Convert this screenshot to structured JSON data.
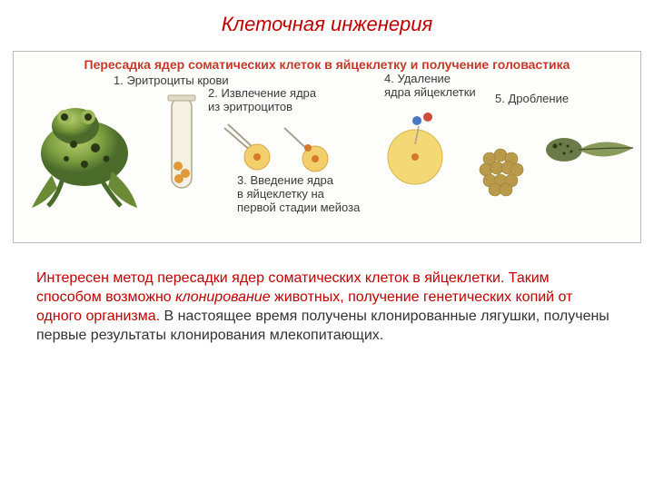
{
  "title": {
    "text": "Клеточная инженерия",
    "color": "#c00000"
  },
  "figure": {
    "title": "Пересадка ядер соматических клеток в яйцеклетку и получение головастика",
    "title_color": "#c33a2c",
    "steps": {
      "s1": "1. Эритроциты крови",
      "s2a": "2. Извлечение ядра",
      "s2b": "из эритроцитов",
      "s3a": "3. Введение ядра",
      "s3b": "в яйцеклетку на",
      "s3c": "первой стадии мейоза",
      "s4a": "4. Удаление",
      "s4b": "ядра яйцеклетки",
      "s5": "5. Дробление"
    },
    "colors": {
      "frog_green_dark": "#4a6b2a",
      "frog_green_light": "#8dab4e",
      "frog_spot": "#2c3815",
      "tube_outline": "#b0a98e",
      "tube_fill": "#ece7d2",
      "cell_yellow": "#f2cf6a",
      "cell_orange": "#e09a3a",
      "nucleus_orange": "#d47a2a",
      "needle": "#a9a090",
      "egg_yellow": "#f4d876",
      "dot_blue": "#4a78c2",
      "dot_red": "#d24a3a",
      "morula": "#b89a4a",
      "tadpole_body": "#6a7a48",
      "tadpole_dark": "#3e4a28"
    }
  },
  "body": {
    "part1": "Интересен метод пересадки ядер соматических клеток в яйцеклетки. Таким способом возможно ",
    "em": "клонирование",
    "part2": " животных, получение генетических копий от одного организма. В настоящее время получены клонированные лягушки, получены первые результаты клонирования млекопитающих.",
    "red_color": "#c00000",
    "black_color": "#333333"
  }
}
